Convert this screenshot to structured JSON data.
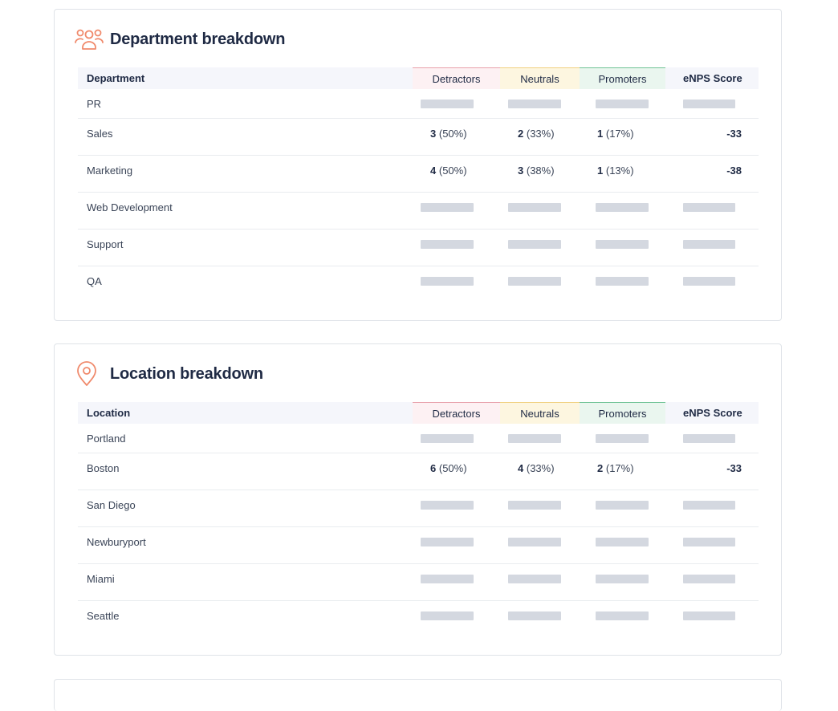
{
  "colors": {
    "accent": "#f08a6c",
    "detractors": "#e8a0ab",
    "neutrals": "#f0d080",
    "promoters": "#6fc295"
  },
  "department": {
    "title": "Department breakdown",
    "icon": "users-icon",
    "headers": {
      "first": "Department",
      "detractors": "Detractors",
      "neutrals": "Neutrals",
      "promoters": "Promoters",
      "enps": "eNPS Score"
    },
    "rows": [
      {
        "name": "PR",
        "loaded": false
      },
      {
        "name": "Sales",
        "loaded": true,
        "det_n": "3",
        "det_p": "(50%)",
        "neu_n": "2",
        "neu_p": "(33%)",
        "pro_n": "1",
        "pro_p": "(17%)",
        "enps": "-33"
      },
      {
        "name": "Marketing",
        "loaded": true,
        "det_n": "4",
        "det_p": "(50%)",
        "neu_n": "3",
        "neu_p": "(38%)",
        "pro_n": "1",
        "pro_p": "(13%)",
        "enps": "-38"
      },
      {
        "name": "Web Development",
        "loaded": false
      },
      {
        "name": "Support",
        "loaded": false
      },
      {
        "name": "QA",
        "loaded": false
      }
    ]
  },
  "location": {
    "title": "Location breakdown",
    "icon": "map-pin-icon",
    "headers": {
      "first": "Location",
      "detractors": "Detractors",
      "neutrals": "Neutrals",
      "promoters": "Promoters",
      "enps": "eNPS Score"
    },
    "rows": [
      {
        "name": "Portland",
        "loaded": false
      },
      {
        "name": "Boston",
        "loaded": true,
        "det_n": "6",
        "det_p": "(50%)",
        "neu_n": "4",
        "neu_p": "(33%)",
        "pro_n": "2",
        "pro_p": "(17%)",
        "enps": "-33"
      },
      {
        "name": "San Diego",
        "loaded": false
      },
      {
        "name": "Newburyport",
        "loaded": false
      },
      {
        "name": "Miami",
        "loaded": false
      },
      {
        "name": "Seattle",
        "loaded": false
      }
    ]
  }
}
